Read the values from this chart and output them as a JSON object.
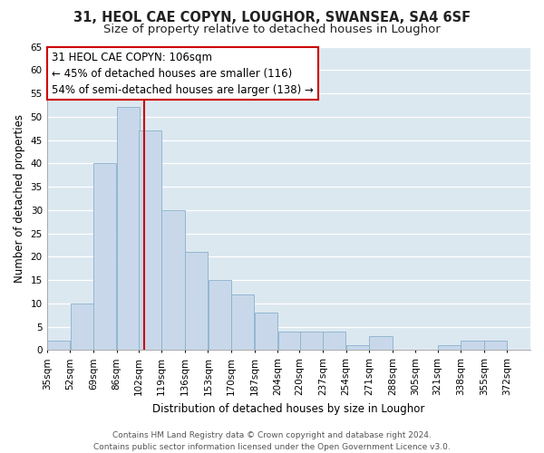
{
  "title": "31, HEOL CAE COPYN, LOUGHOR, SWANSEA, SA4 6SF",
  "subtitle": "Size of property relative to detached houses in Loughor",
  "xlabel": "Distribution of detached houses by size in Loughor",
  "ylabel": "Number of detached properties",
  "bar_color": "#c8d8ea",
  "bar_edge_color": "#8ab0cc",
  "background_color": "#dce8f0",
  "fig_background_color": "#ffffff",
  "grid_color": "#ffffff",
  "vline_color": "#cc0000",
  "vline_x": 106,
  "categories": [
    "35sqm",
    "52sqm",
    "69sqm",
    "86sqm",
    "102sqm",
    "119sqm",
    "136sqm",
    "153sqm",
    "170sqm",
    "187sqm",
    "204sqm",
    "220sqm",
    "237sqm",
    "254sqm",
    "271sqm",
    "288sqm",
    "305sqm",
    "321sqm",
    "338sqm",
    "355sqm",
    "372sqm"
  ],
  "bin_edges": [
    35,
    52,
    69,
    86,
    102,
    119,
    136,
    153,
    170,
    187,
    204,
    220,
    237,
    254,
    271,
    288,
    305,
    321,
    338,
    355,
    372,
    389
  ],
  "values": [
    2,
    10,
    40,
    52,
    47,
    30,
    21,
    15,
    12,
    8,
    4,
    4,
    4,
    1,
    3,
    0,
    0,
    1,
    2,
    2,
    0
  ],
  "ylim": [
    0,
    65
  ],
  "yticks": [
    0,
    5,
    10,
    15,
    20,
    25,
    30,
    35,
    40,
    45,
    50,
    55,
    60,
    65
  ],
  "annotation_line1": "31 HEOL CAE COPYN: 106sqm",
  "annotation_line2": "← 45% of detached houses are smaller (116)",
  "annotation_line3": "54% of semi-detached houses are larger (138) →",
  "footer_line1": "Contains HM Land Registry data © Crown copyright and database right 2024.",
  "footer_line2": "Contains public sector information licensed under the Open Government Licence v3.0.",
  "title_fontsize": 10.5,
  "subtitle_fontsize": 9.5,
  "axis_label_fontsize": 8.5,
  "tick_fontsize": 7.5,
  "annotation_fontsize": 8.5,
  "footer_fontsize": 6.5
}
